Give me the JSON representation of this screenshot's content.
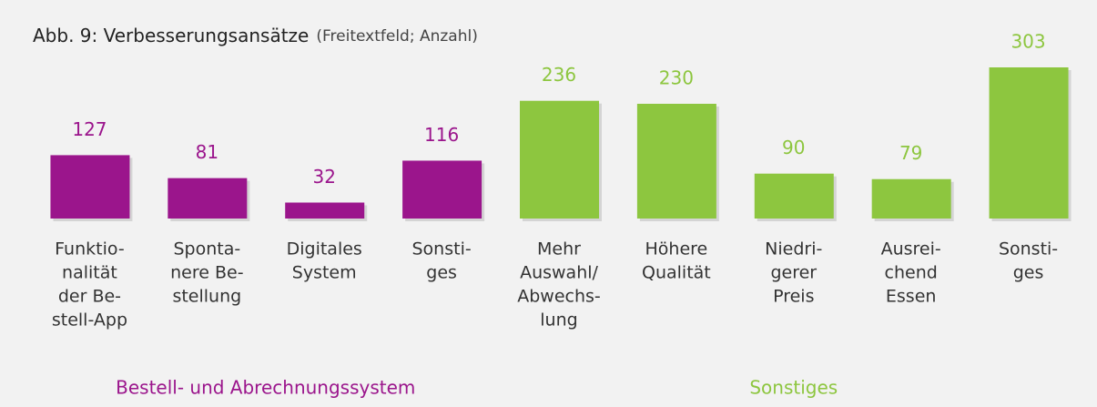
{
  "chart_data": {
    "type": "bar",
    "title": "Abb. 9: Verbesserungsansätze",
    "subtitle": "(Freitextfeld; Anzahl)",
    "categories": [
      [
        "Funktio-",
        "nalität",
        "der Be-",
        "stell-App"
      ],
      [
        "Sponta-",
        "nere Be-",
        "stellung"
      ],
      [
        "Digitales",
        "System"
      ],
      [
        "Sonsti-",
        "ges"
      ],
      [
        "Mehr",
        "Auswahl/",
        "Abwechs-",
        "lung"
      ],
      [
        "Höhere",
        "Qualität"
      ],
      [
        "Niedri-",
        "gerer",
        "Preis"
      ],
      [
        "Ausrei-",
        "chend",
        "Essen"
      ],
      [
        "Sonsti-",
        "ges"
      ]
    ],
    "series": [
      {
        "name": "Bestell- und Abrechnungssystem",
        "color": "#9b158c",
        "values": [
          127,
          81,
          32,
          116,
          null,
          null,
          null,
          null,
          null
        ]
      },
      {
        "name": "Sonstiges",
        "color": "#8dc63f",
        "values": [
          null,
          null,
          null,
          null,
          236,
          230,
          90,
          79,
          303
        ]
      }
    ]
  }
}
